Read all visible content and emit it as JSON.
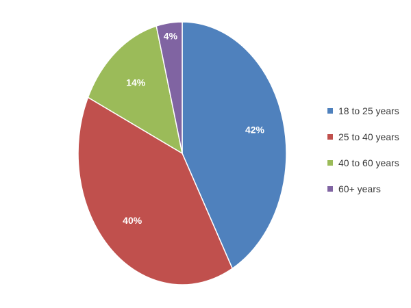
{
  "chart_data": {
    "type": "pie",
    "categories": [
      "18 to 25 years",
      "25 to 40 years",
      "40 to 60 years",
      "60+ years"
    ],
    "values": [
      42,
      40,
      14,
      4
    ],
    "value_labels": [
      "42%",
      "40%",
      "14%",
      "4%"
    ],
    "colors": [
      "#4F81BD",
      "#C0504D",
      "#9BBB59",
      "#8064A2"
    ],
    "legend_position": "right"
  }
}
